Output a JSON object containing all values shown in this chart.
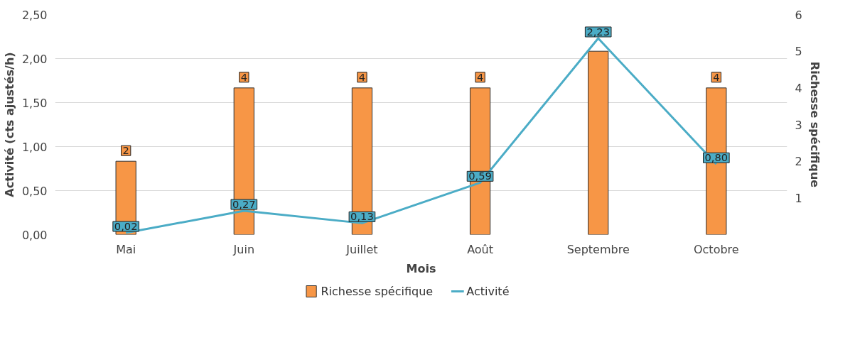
{
  "chart_data": {
    "type": "bar",
    "xlabel": "Mois",
    "ylabel": "Activité (cts ajustés/h)",
    "y2label": "Richesse spécifique",
    "categories": [
      "Mai",
      "Juin",
      "Juillet",
      "Août",
      "Septembre",
      "Octobre"
    ],
    "series": [
      {
        "name": "Richesse spécifique",
        "type": "bar",
        "axis": "y2",
        "color": "#f79646",
        "values": [
          2,
          4,
          4,
          4,
          5,
          4
        ],
        "value_labels": [
          "2",
          "4",
          "4",
          "4",
          null,
          "4"
        ]
      },
      {
        "name": "Activité",
        "type": "line",
        "color": "#4bacc6",
        "values": [
          0.02,
          0.27,
          0.13,
          0.59,
          2.23,
          0.8
        ],
        "value_labels": [
          "0,02",
          "0,27",
          "0,13",
          "0,59",
          "2,23",
          "0,80"
        ]
      }
    ],
    "ylim": [
      0,
      2.5
    ],
    "yticks": [
      {
        "value": 0,
        "label": "0,00"
      },
      {
        "value": 0.5,
        "label": "0,50"
      },
      {
        "value": 1,
        "label": "1,00"
      },
      {
        "value": 1.5,
        "label": "1,50"
      },
      {
        "value": 2,
        "label": "2,00"
      },
      {
        "value": 2.5,
        "label": "2,50"
      }
    ],
    "y2lim": [
      0,
      6
    ],
    "y2ticks": [
      1,
      2,
      3,
      4,
      5,
      6
    ],
    "grid": "y",
    "legend": "bottom",
    "marker": "none",
    "line_style": "solid"
  }
}
